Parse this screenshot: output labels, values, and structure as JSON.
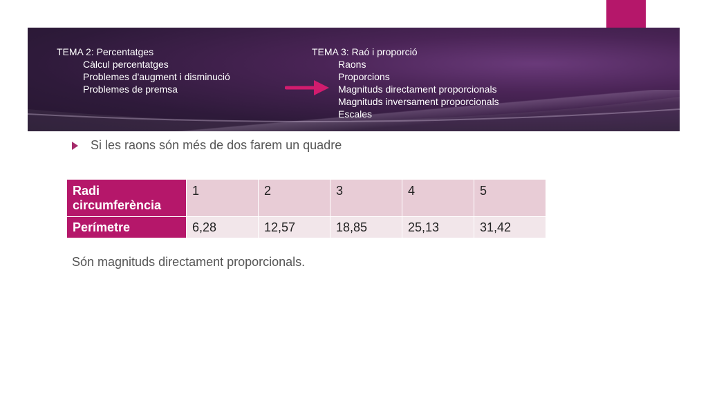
{
  "header": {
    "tema2": {
      "title": "TEMA 2: Percentatges",
      "items": [
        "Càlcul percentatges",
        "Problemes d'augment i disminució",
        "Problemes de premsa"
      ]
    },
    "tema3": {
      "title": "TEMA 3: Raó i proporció",
      "items": [
        "Raons",
        "Proporcions",
        "Magnituds directament proporcionals",
        "Magnituds inversament proporcionals",
        "Escales"
      ]
    }
  },
  "bullet": "Si les raons són més de dos farem un quadre",
  "table": {
    "row1": {
      "label": "Radi circumferència",
      "values": [
        "1",
        "2",
        "3",
        "4",
        "5"
      ]
    },
    "row2": {
      "label": "Perímetre",
      "values": [
        "6,28",
        "12,57",
        "18,85",
        "25,13",
        "31,42"
      ]
    }
  },
  "conclusion": "Són magnituds directament proporcionals.",
  "colors": {
    "accent": "#b5176a",
    "header_bg": "#3a1f48",
    "arrow": "#d11c6e"
  }
}
